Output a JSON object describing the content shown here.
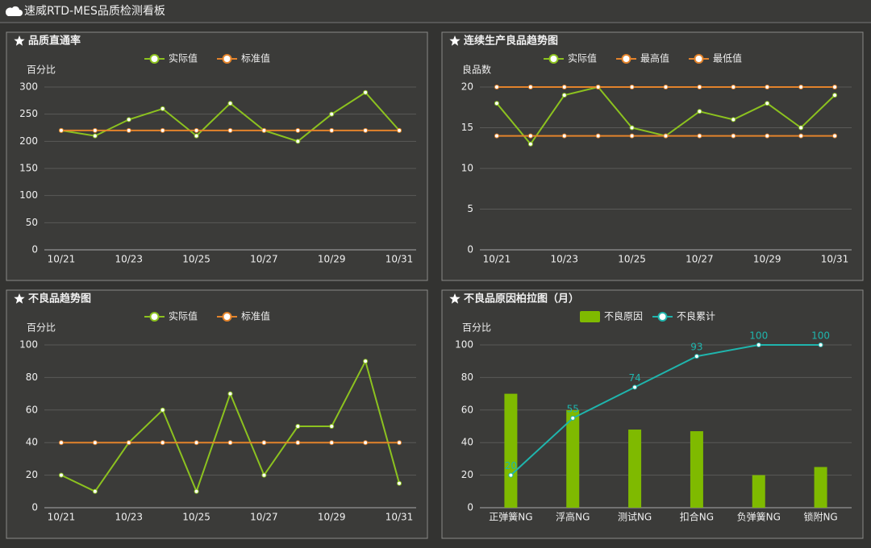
{
  "header": {
    "title": "速威RTD-MES品质检测看板"
  },
  "chart_data": [
    {
      "type": "line",
      "title": "品质直通率",
      "y_label": "百分比",
      "categories": [
        "10/21",
        null,
        "10/23",
        null,
        "10/25",
        null,
        "10/27",
        null,
        "10/29",
        null,
        "10/31"
      ],
      "series": [
        {
          "name": "实际值",
          "color": "#8cc21f",
          "values": [
            220,
            210,
            240,
            260,
            210,
            270,
            220,
            200,
            250,
            290,
            220
          ]
        },
        {
          "name": "标准值",
          "color": "#e3832b",
          "values": [
            220,
            220,
            220,
            220,
            220,
            220,
            220,
            220,
            220,
            220,
            220
          ]
        }
      ],
      "ylim": [
        0,
        300
      ],
      "yticks": [
        0,
        50,
        100,
        150,
        200,
        250,
        300
      ],
      "grid": true
    },
    {
      "type": "line",
      "title": "连续生产良品趋势图",
      "y_label": "良品数",
      "categories": [
        "10/21",
        null,
        "10/23",
        null,
        "10/25",
        null,
        "10/27",
        null,
        "10/29",
        null,
        "10/31"
      ],
      "series": [
        {
          "name": "实际值",
          "color": "#8cc21f",
          "values": [
            18,
            13,
            19,
            20,
            15,
            14,
            17,
            16,
            18,
            15,
            19
          ]
        },
        {
          "name": "最高值",
          "color": "#e3832b",
          "values": [
            20,
            20,
            20,
            20,
            20,
            20,
            20,
            20,
            20,
            20,
            20
          ]
        },
        {
          "name": "最低值",
          "color": "#e3832b",
          "values": [
            14,
            14,
            14,
            14,
            14,
            14,
            14,
            14,
            14,
            14,
            14
          ]
        }
      ],
      "ylim": [
        0,
        20
      ],
      "yticks": [
        0,
        5,
        10,
        15,
        20
      ],
      "grid": true
    },
    {
      "type": "line",
      "title": "不良品趋势图",
      "y_label": "百分比",
      "categories": [
        "10/21",
        null,
        "10/23",
        null,
        "10/25",
        null,
        "10/27",
        null,
        "10/29",
        null,
        "10/31"
      ],
      "series": [
        {
          "name": "实际值",
          "color": "#8cc21f",
          "values": [
            20,
            10,
            40,
            60,
            10,
            70,
            20,
            50,
            50,
            90,
            15
          ]
        },
        {
          "name": "标准值",
          "color": "#e3832b",
          "values": [
            40,
            40,
            40,
            40,
            40,
            40,
            40,
            40,
            40,
            40,
            40
          ]
        }
      ],
      "ylim": [
        0,
        100
      ],
      "yticks": [
        0,
        20,
        40,
        60,
        80,
        100
      ],
      "grid": true
    },
    {
      "type": "combo",
      "title": "不良品原因柏拉图（月）",
      "y_label": "百分比",
      "categories": [
        "正弹簧NG",
        "浮高NG",
        "测试NG",
        "扣合NG",
        "负弹簧NG",
        "锁附NG"
      ],
      "series": [
        {
          "name": "不良原因",
          "type": "bar",
          "color": "#7fba00",
          "values": [
            70,
            60,
            48,
            47,
            20,
            25
          ]
        },
        {
          "name": "不良累计",
          "type": "line",
          "color": "#1fb5ad",
          "values": [
            20,
            55,
            74,
            93,
            100,
            100
          ],
          "data_labels": true
        }
      ],
      "ylim": [
        0,
        100
      ],
      "yticks": [
        0,
        20,
        40,
        60,
        80,
        100
      ],
      "grid": true
    }
  ]
}
